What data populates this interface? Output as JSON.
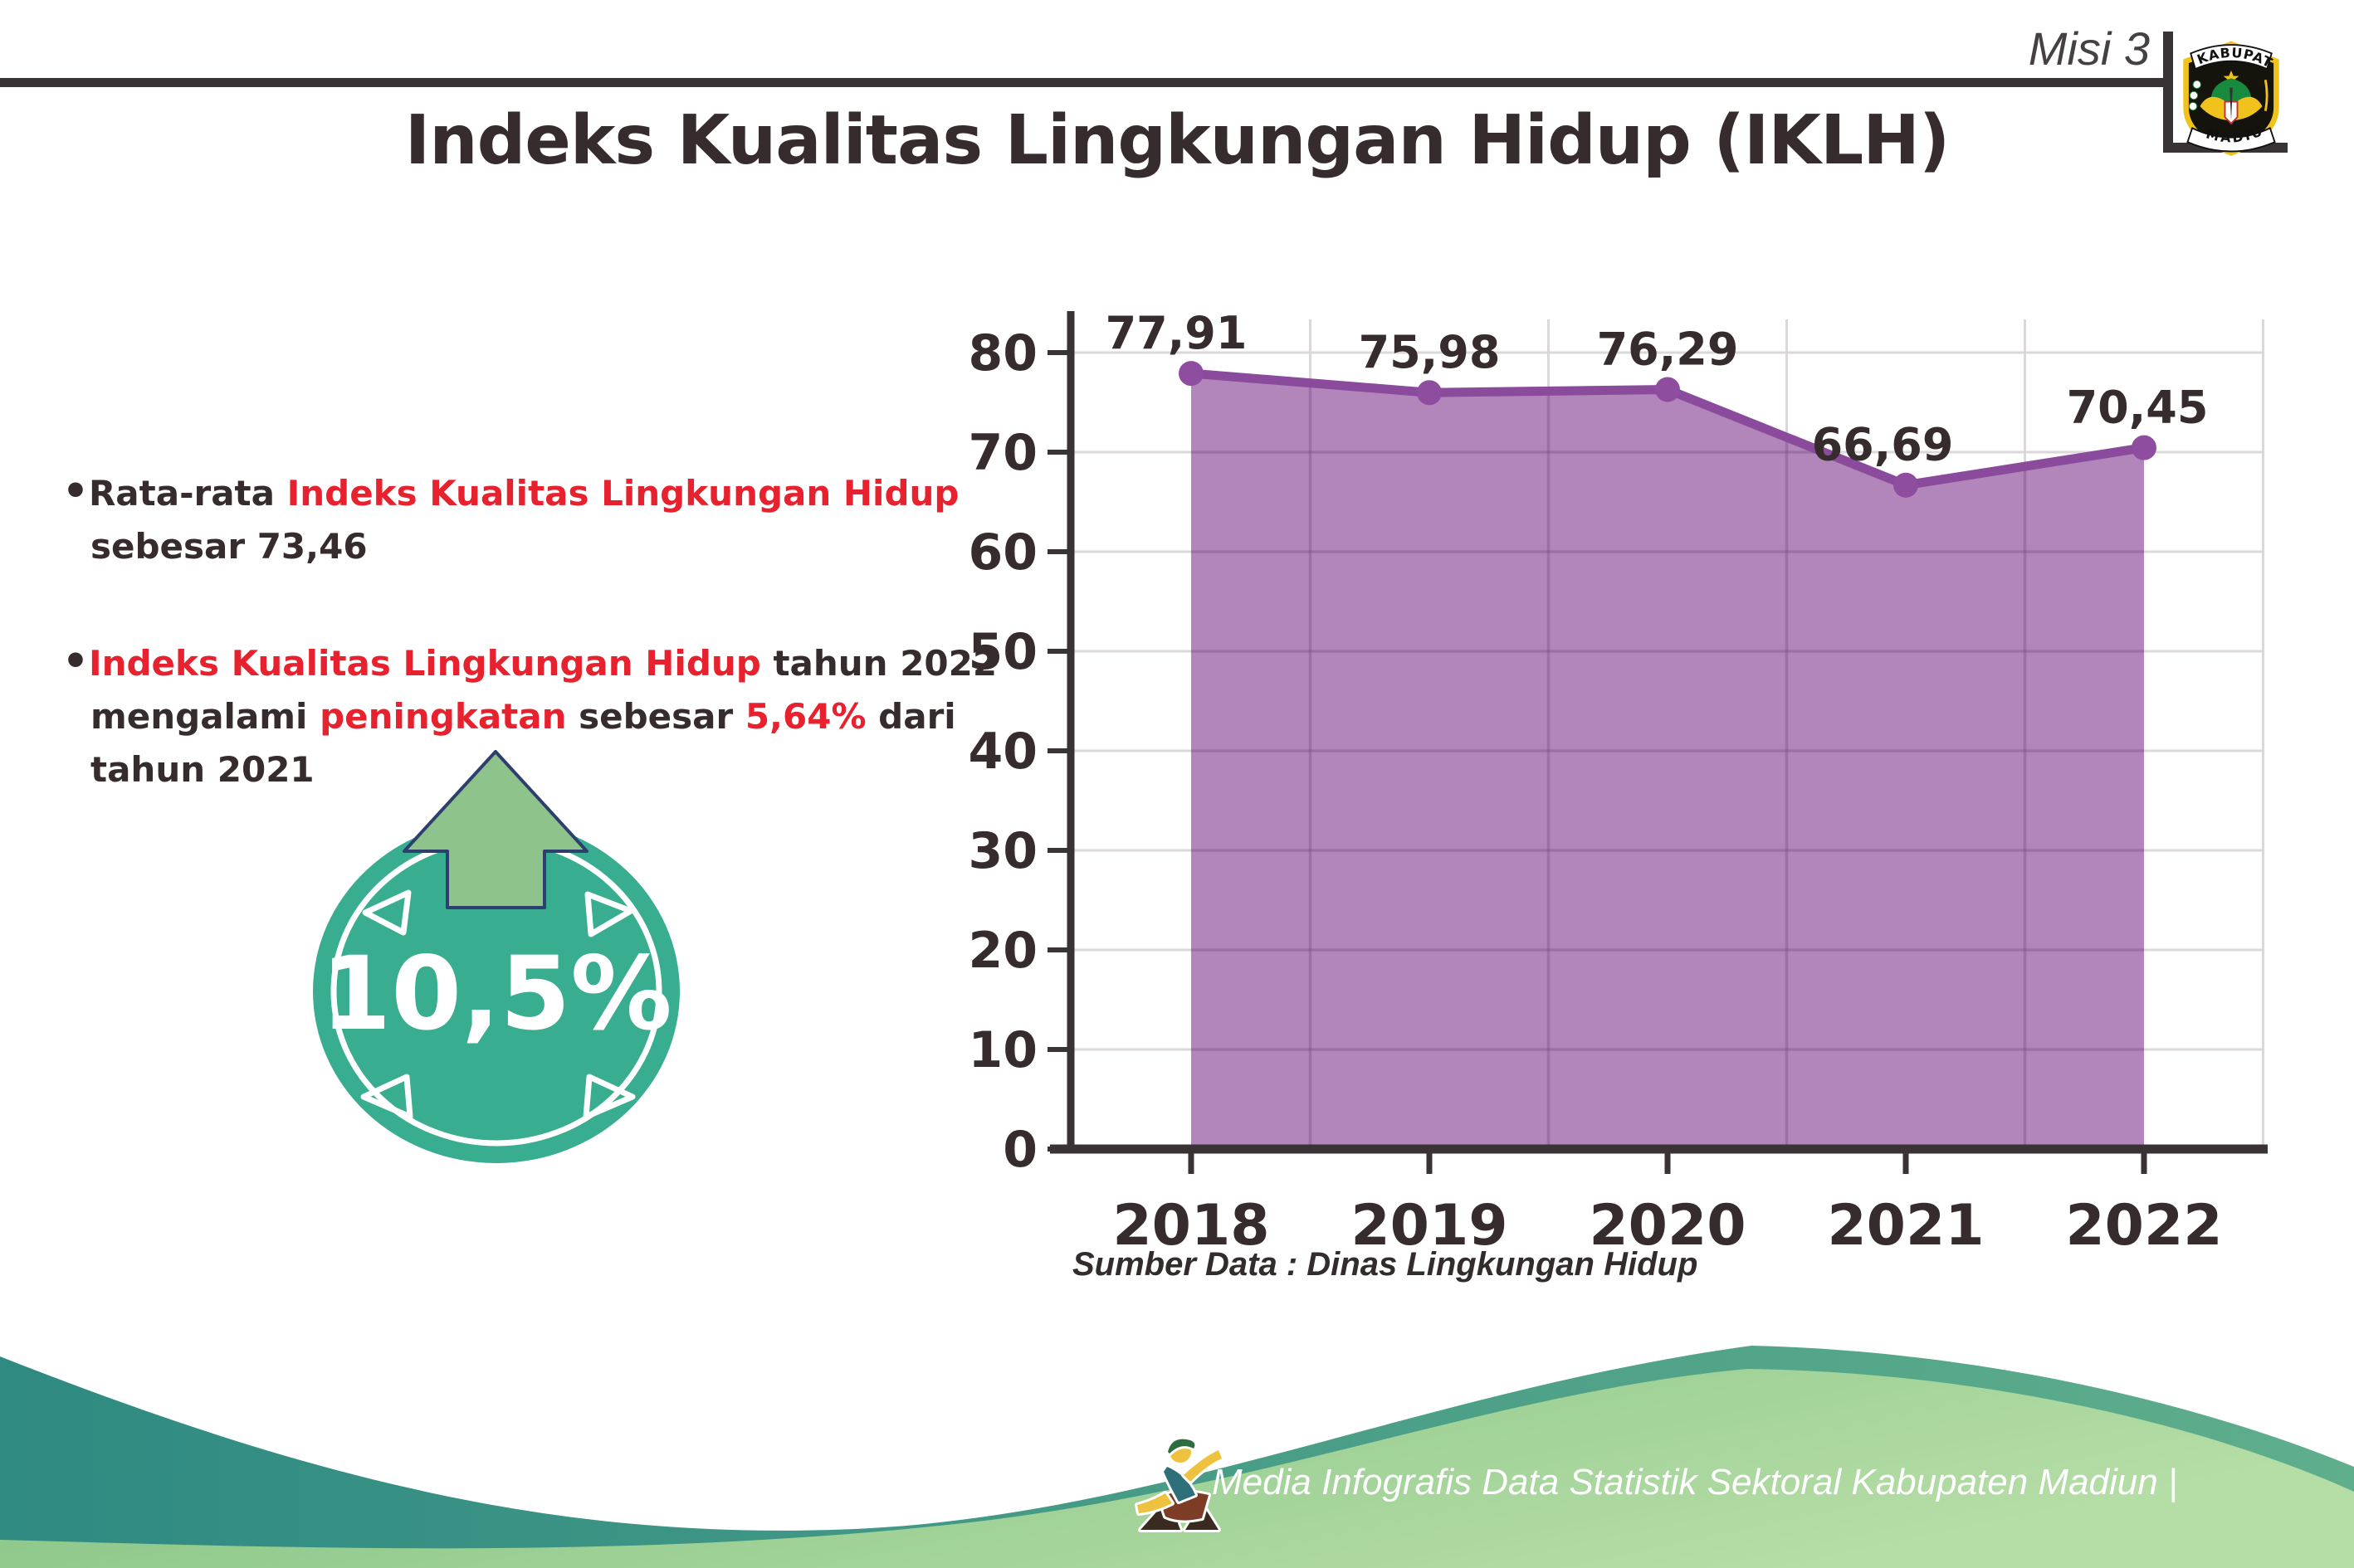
{
  "page_title": "Indeks Kualitas Lingkungan Hidup (IKLH)",
  "header": {
    "mission_label": "Misi 3",
    "logo": {
      "top_text": "KABUPATEN",
      "bottom_text": "MADIUN"
    }
  },
  "bullets": {
    "marker": "•",
    "items": [
      {
        "segments": [
          {
            "text": "Rata-rata ",
            "red": false
          },
          {
            "text": "Indeks Kualitas Lingkungan Hidup",
            "red": true,
            "br_after": true
          },
          {
            "text": "sebesar 73,46",
            "red": false
          }
        ]
      },
      {
        "segments": [
          {
            "text": "Indeks Kualitas Lingkungan Hidup",
            "red": true
          },
          {
            "text": " tahun 2022",
            "red": false,
            "br_after": true
          },
          {
            "text": "mengalami ",
            "red": false
          },
          {
            "text": "peningkatan",
            "red": true
          },
          {
            "text": " sebesar ",
            "red": false
          },
          {
            "text": "5,64%",
            "red": true
          },
          {
            "text": " dari",
            "red": false,
            "br_after": true
          },
          {
            "text": "tahun 2021",
            "red": false
          }
        ]
      }
    ]
  },
  "badge": {
    "value_label": "10,5%"
  },
  "chart_data": {
    "type": "area",
    "title": "Indeks Kualitas Lingkungan Hidup (IKLH)",
    "categories": [
      "2018",
      "2019",
      "2020",
      "2021",
      "2022"
    ],
    "values": [
      77.91,
      75.98,
      76.29,
      66.69,
      70.45
    ],
    "value_labels": [
      "77,91",
      "75,98",
      "76,29",
      "66,69",
      "70,45"
    ],
    "xlabel": "",
    "ylabel": "",
    "ylim": [
      0,
      80
    ],
    "ytick_step": 10,
    "ytick_labels": [
      "0",
      "10",
      "20",
      "30",
      "40",
      "50",
      "60",
      "70",
      "80"
    ],
    "grid": true,
    "legend": false
  },
  "source_line": "Sumber Data : Dinas Lingkungan Hidup",
  "footer": {
    "credit": "Media Infografis Data Statistik Sektoral Kabupaten Madiun |"
  },
  "colors": {
    "text_dark": "#362c2d",
    "red": "#e8212e",
    "purple_fill": "#b286bb",
    "purple_line": "#8a4b9c",
    "marker": "#8e4d9e",
    "axis": "#3a3335",
    "grid": "#dcd7da",
    "teal_badge": "#38ad8f",
    "arrow_green": "#8fc38c",
    "arrow_outline": "#2e3f6e",
    "wave_teal_1": "#2f8a82",
    "wave_teal_2": "#5fae8c",
    "wave_green_1": "#7fc081",
    "wave_green_2": "#b5dda6",
    "logo_gold": "#f0c21b"
  }
}
